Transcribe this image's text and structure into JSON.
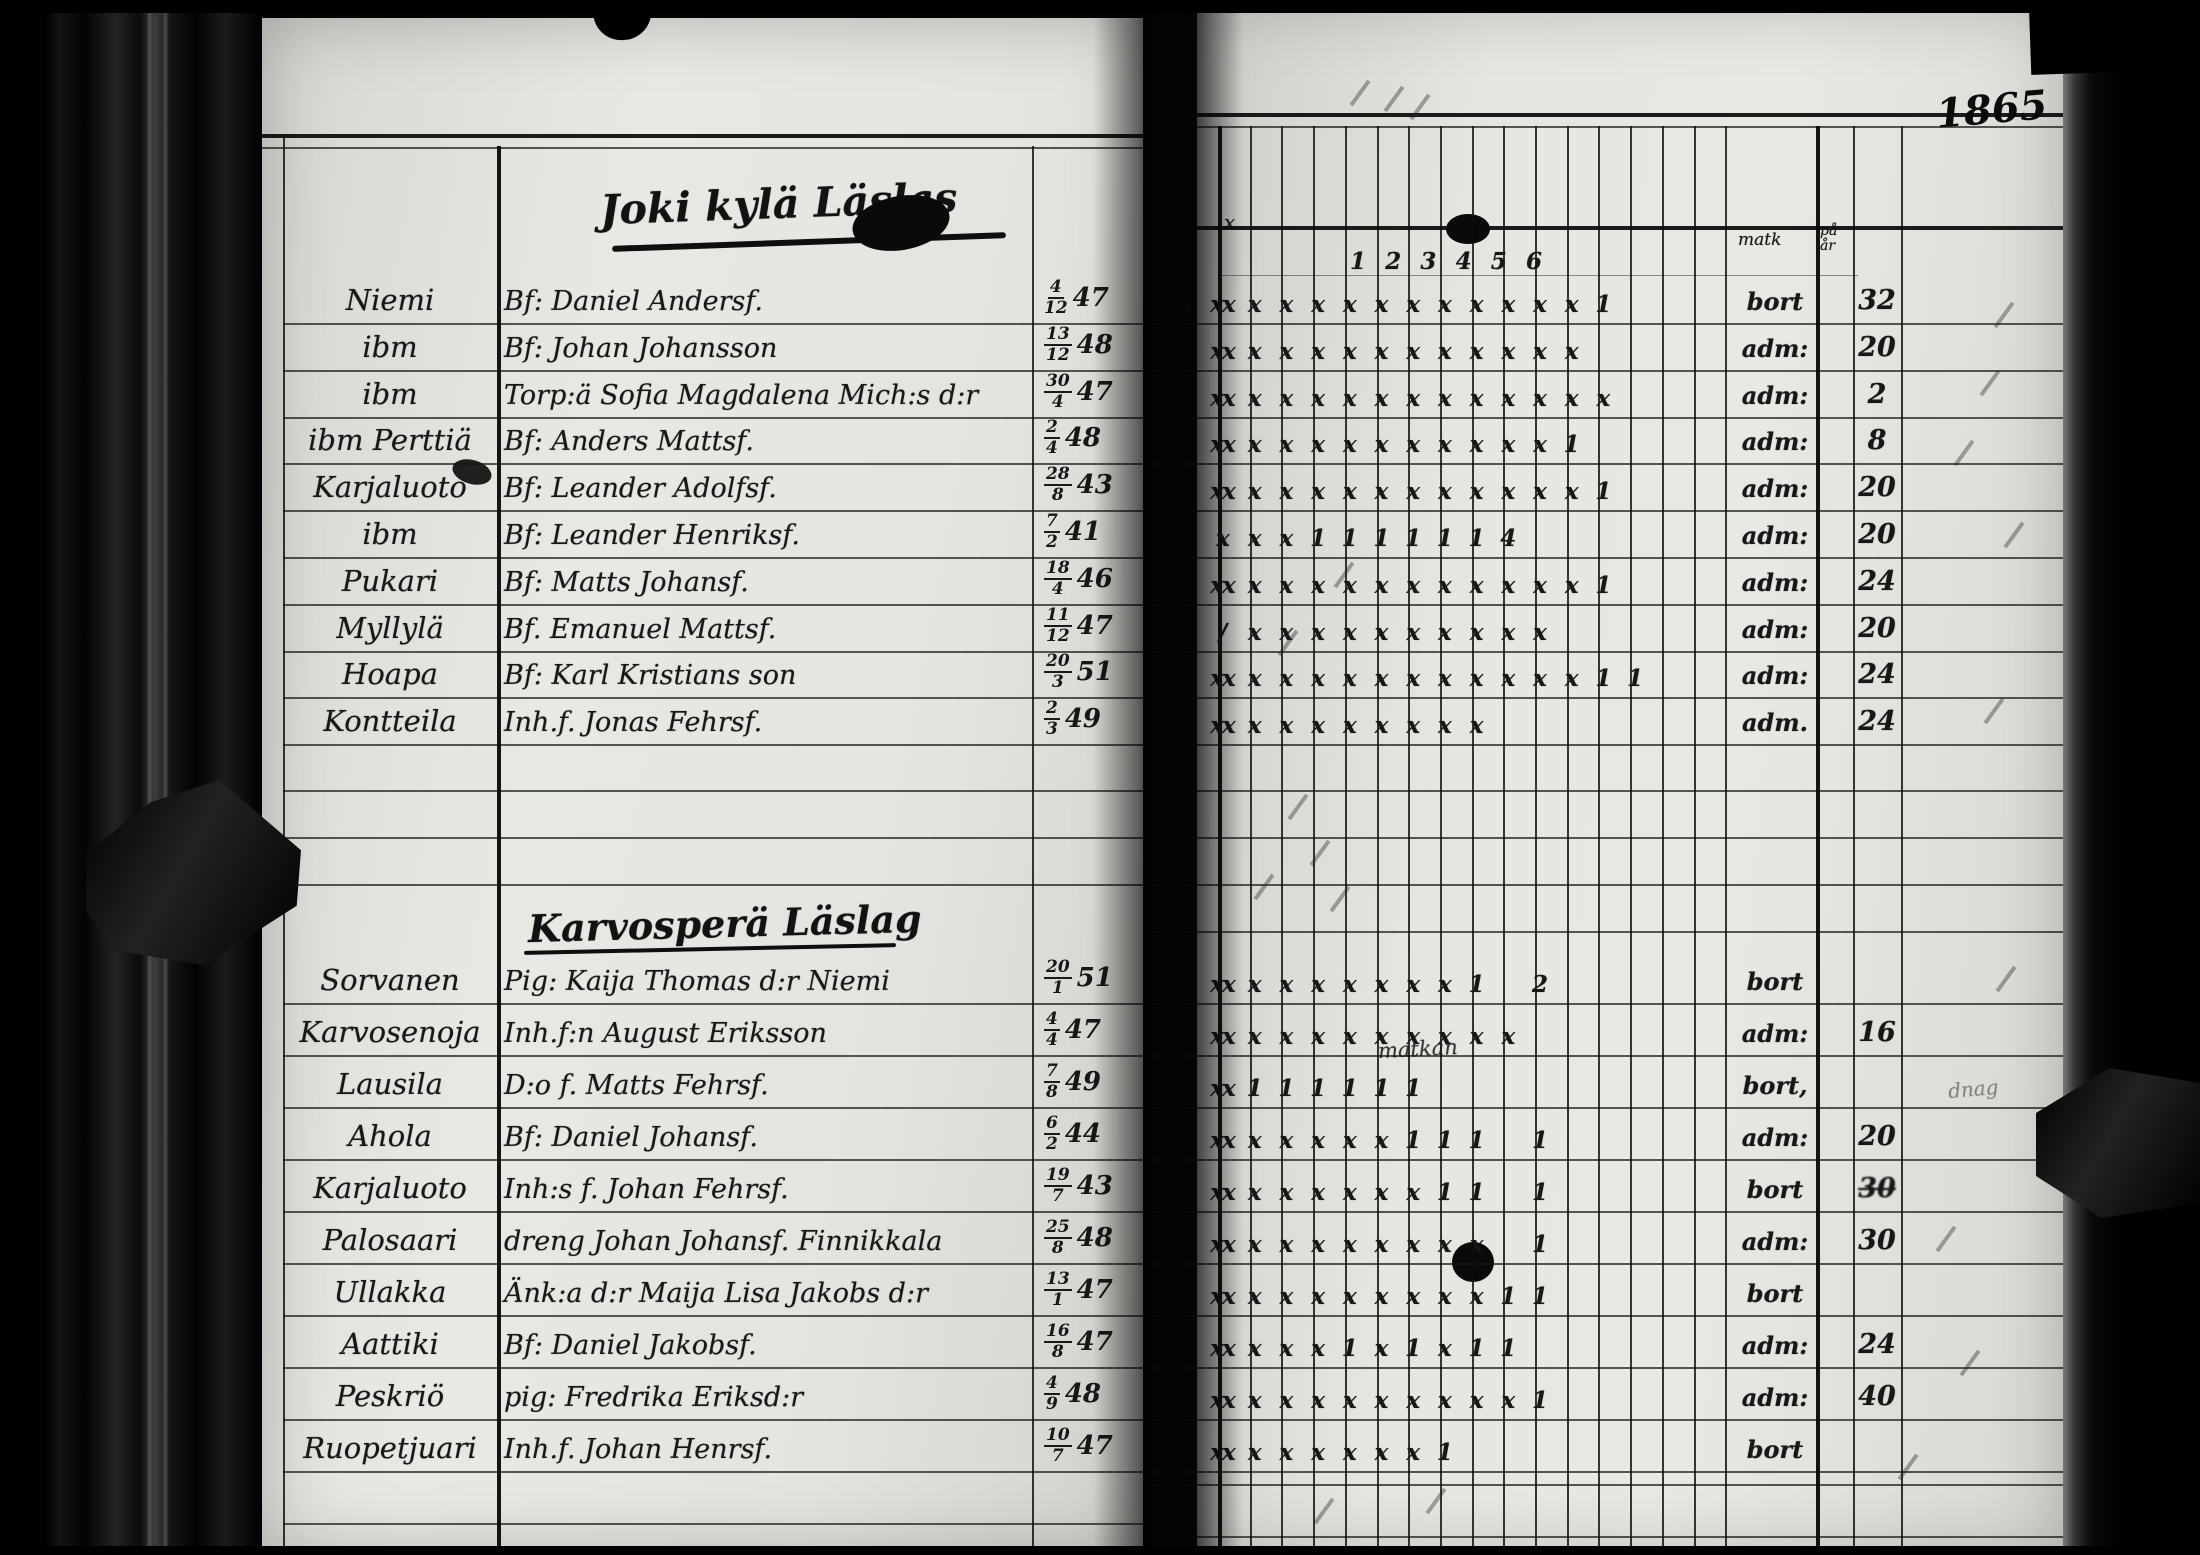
{
  "year_label": "1865",
  "left_page": {
    "sections": [
      {
        "title": "Joki kylä Läslas",
        "rows": [
          {
            "name": "Niemi",
            "desc": "Bf: Daniel Andersf.",
            "date": [
              "4",
              "12",
              "47"
            ],
            "status": "bort",
            "count": "32",
            "pre": "xx",
            "marks": [
              "xx",
              "x",
              "x",
              "x",
              "x",
              "x",
              "x",
              "x",
              "x",
              "x",
              "x",
              "x",
              "1",
              "",
              "",
              ""
            ]
          },
          {
            "name": "ibm",
            "desc": "Bf: Johan Johansson",
            "date": [
              "13",
              "12",
              "48"
            ],
            "status": "adm:",
            "count": "20",
            "pre": "",
            "marks": [
              "xx",
              "x",
              "x",
              "x",
              "x",
              "x",
              "x",
              "x",
              "x",
              "x",
              "x",
              "x",
              "",
              "",
              "",
              ""
            ]
          },
          {
            "name": "ibm",
            "desc": "Torp:ä Sofia Magdalena Mich:s d:r",
            "date": [
              "30",
              "4",
              "47"
            ],
            "status": "adm:",
            "count": "2",
            "pre": "",
            "marks": [
              "xx",
              "x",
              "x",
              "x",
              "x",
              "x",
              "x",
              "x",
              "x",
              "x",
              "x",
              "x",
              "x",
              "",
              "",
              ""
            ]
          },
          {
            "name": "ibm Perttiä",
            "desc": "Bf: Anders Mattsf.",
            "date": [
              "2",
              "4",
              "48"
            ],
            "status": "adm:",
            "count": "8",
            "pre": "",
            "marks": [
              "xx",
              "x",
              "x",
              "x",
              "x",
              "x",
              "x",
              "x",
              "x",
              "x",
              "x",
              "1",
              "",
              "",
              "",
              ""
            ]
          },
          {
            "name": "Karjaluoto",
            "desc": "Bf: Leander Adolfsf.",
            "date": [
              "28",
              "8",
              "43"
            ],
            "status": "adm:",
            "count": "20",
            "pre": "",
            "marks": [
              "xx",
              "x",
              "x",
              "x",
              "x",
              "x",
              "x",
              "x",
              "x",
              "x",
              "x",
              "x",
              "1",
              "",
              "",
              ""
            ]
          },
          {
            "name": "ibm",
            "desc": "Bf: Leander Henriksf.",
            "date": [
              "7",
              "2",
              "41"
            ],
            "status": "adm:",
            "count": "20",
            "pre": "",
            "marks": [
              "x",
              "x",
              "x",
              "1",
              "1",
              "1",
              "1",
              "1",
              "1",
              "4",
              "",
              "",
              "",
              "",
              "",
              ""
            ]
          },
          {
            "name": "Pukari",
            "desc": "Bf: Matts Johansf.",
            "date": [
              "18",
              "4",
              "46"
            ],
            "status": "adm:",
            "count": "24",
            "pre": "",
            "marks": [
              "xx",
              "x",
              "x",
              "x",
              "x",
              "x",
              "x",
              "x",
              "x",
              "x",
              "x",
              "x",
              "1",
              "",
              "",
              ""
            ]
          },
          {
            "name": "Myllylä",
            "desc": "Bf. Emanuel Mattsf.",
            "date": [
              "11",
              "12",
              "47"
            ],
            "status": "adm:",
            "count": "20",
            "pre": "",
            "marks": [
              "/",
              "x",
              "x",
              "x",
              "x",
              "x",
              "x",
              "x",
              "x",
              "x",
              "x",
              "",
              "",
              "",
              "",
              ""
            ]
          },
          {
            "name": "Hoapa",
            "desc": "Bf: Karl Kristians son",
            "date": [
              "20",
              "3",
              "51"
            ],
            "status": "adm:",
            "count": "24",
            "pre": "",
            "marks": [
              "xx",
              "x",
              "x",
              "x",
              "x",
              "x",
              "x",
              "x",
              "x",
              "x",
              "x",
              "x",
              "1",
              "1",
              "",
              ""
            ]
          },
          {
            "name": "Kontteila",
            "desc": "Inh.f. Jonas Fehrsf.",
            "date": [
              "2",
              "3",
              "49"
            ],
            "status": "adm.",
            "count": "24",
            "pre": "",
            "marks": [
              "xx",
              "x",
              "x",
              "x",
              "x",
              "x",
              "x",
              "x",
              "x",
              "",
              "",
              "",
              "",
              "",
              "",
              ""
            ]
          }
        ]
      },
      {
        "title": "Karvosperä Läslag",
        "rows": [
          {
            "name": "Sorvanen",
            "desc": "Pig: Kaija Thomas d:r Niemi",
            "date": [
              "20",
              "1",
              "51"
            ],
            "status": "bort",
            "count": "",
            "pre": "",
            "marks": [
              "xx",
              "x",
              "x",
              "x",
              "x",
              "x",
              "x",
              "x",
              "1",
              "",
              "2",
              "",
              "",
              "",
              "",
              ""
            ]
          },
          {
            "name": "Karvosenoja",
            "desc": "Inh.f:n August Eriksson",
            "date": [
              "4",
              "4",
              "47"
            ],
            "status": "adm:",
            "count": "16",
            "pre": "",
            "note": "matkan",
            "marks": [
              "xx",
              "x",
              "x",
              "x",
              "x",
              "x",
              "x",
              "x",
              "x",
              "x",
              "",
              "",
              "",
              "",
              "",
              ""
            ]
          },
          {
            "name": "Lausila",
            "desc": "D:o f. Matts Fehrsf.",
            "date": [
              "7",
              "8",
              "49"
            ],
            "status": "bort,",
            "count": "",
            "pre": "",
            "note_right": "dnag",
            "marks": [
              "xx",
              "1",
              "1",
              "1",
              "1",
              "1",
              "1",
              "",
              "",
              "",
              "",
              "",
              "",
              "",
              "",
              ""
            ]
          },
          {
            "name": "Ahola",
            "desc": "Bf: Daniel Johansf.",
            "date": [
              "6",
              "2",
              "44"
            ],
            "status": "adm:",
            "count": "20",
            "pre": "",
            "marks": [
              "xx",
              "x",
              "x",
              "x",
              "x",
              "x",
              "1",
              "1",
              "1",
              "",
              "1",
              "",
              "",
              "",
              "",
              ""
            ]
          },
          {
            "name": "Karjaluoto",
            "desc": "Inh:s f. Johan Fehrsf.",
            "date": [
              "19",
              "7",
              "43"
            ],
            "status": "bort",
            "count": "30",
            "struck": true,
            "pre": "|",
            "marks": [
              "xx",
              "x",
              "x",
              "x",
              "x",
              "x",
              "x",
              "1",
              "1",
              "",
              "1",
              "",
              "",
              "",
              "",
              ""
            ]
          },
          {
            "name": "Palosaari",
            "desc": "dreng Johan Johansf. Finnikkala",
            "date": [
              "25",
              "8",
              "48"
            ],
            "status": "adm:",
            "count": "30",
            "pre": "|",
            "marks": [
              "xx",
              "x",
              "x",
              "x",
              "x",
              "x",
              "x",
              "x",
              "x",
              "",
              "1",
              "",
              "",
              "",
              "",
              ""
            ]
          },
          {
            "name": "Ullakka",
            "desc": "Änk:a d:r Maija Lisa Jakobs d:r",
            "date": [
              "13",
              "1",
              "47"
            ],
            "status": "bort",
            "count": "",
            "pre": "",
            "marks": [
              "xx",
              "x",
              "x",
              "x",
              "x",
              "x",
              "x",
              "x",
              "x",
              "1",
              "1",
              "",
              "",
              "",
              "",
              ""
            ]
          },
          {
            "name": "Aattiki",
            "desc": "Bf: Daniel Jakobsf.",
            "date": [
              "16",
              "8",
              "47"
            ],
            "status": "adm:",
            "count": "24",
            "pre": "",
            "marks": [
              "xx",
              "x",
              "x",
              "x",
              "1",
              "x",
              "1",
              "x",
              "1",
              "1",
              "",
              "",
              "",
              "",
              "",
              ""
            ]
          },
          {
            "name": "Peskriö",
            "desc": "pig: Fredrika Eriksd:r",
            "date": [
              "4",
              "9",
              "48"
            ],
            "status": "adm:",
            "count": "40",
            "pre": "",
            "marks": [
              "xx",
              "x",
              "x",
              "x",
              "x",
              "x",
              "x",
              "x",
              "x",
              "x",
              "1",
              "",
              "",
              "",
              "",
              ""
            ]
          },
          {
            "name": "Ruopetjuari",
            "desc": "Inh.f. Johan Henrsf.",
            "date": [
              "10",
              "7",
              "47"
            ],
            "status": "bort",
            "count": "",
            "pre": "",
            "marks": [
              "xx",
              "x",
              "x",
              "x",
              "x",
              "x",
              "x",
              "1",
              "",
              "",
              "",
              "",
              "",
              "",
              "",
              ""
            ]
          }
        ]
      }
    ]
  },
  "right_page": {
    "header_cols": [
      "1",
      "2",
      "3",
      "4",
      "5",
      "6"
    ],
    "corner_headers": [
      "matk",
      "på år"
    ],
    "stray_mark": "x"
  }
}
